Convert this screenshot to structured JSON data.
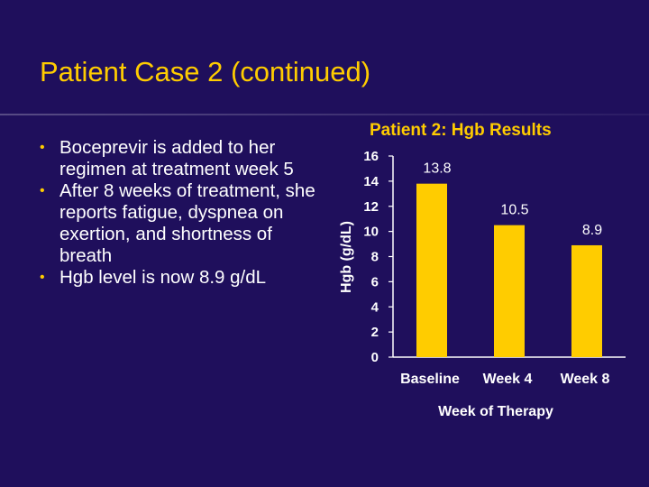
{
  "slide": {
    "title": "Patient Case 2 (continued)",
    "bullets": [
      "Boceprevir is added to her regimen at treatment week 5",
      "After 8 weeks of treatment, she reports fatigue, dyspnea on exertion, and shortness of breath",
      "Hgb level is now 8.9 g/dL"
    ]
  },
  "colors": {
    "background": "#1f0f5c",
    "title": "#ffcc00",
    "bar": "#ffcc00",
    "text": "#ffffff"
  },
  "chart_data": {
    "type": "bar",
    "title": "Patient 2: Hgb Results",
    "xlabel": "Week of Therapy",
    "ylabel": "Hgb (g/dL)",
    "categories": [
      "Baseline",
      "Week 4",
      "Week 8"
    ],
    "values": [
      13.8,
      10.5,
      8.9
    ],
    "data_labels": [
      "13.8",
      "10.5",
      "8.9"
    ],
    "yticks": [
      0,
      2,
      4,
      6,
      8,
      10,
      12,
      14,
      16
    ],
    "ylim": [
      0,
      16
    ],
    "grid": false,
    "legend": "none"
  }
}
